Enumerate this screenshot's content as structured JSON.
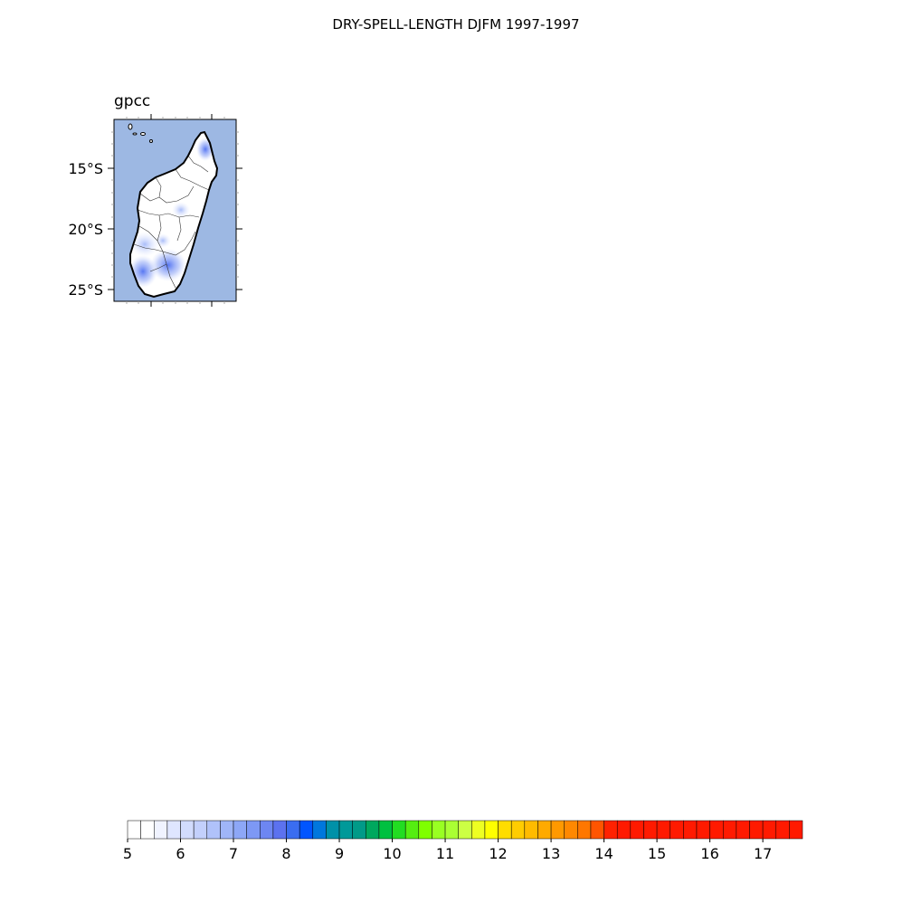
{
  "title": "DRY-SPELL-LENGTH DJFM 1997-1997",
  "panel": {
    "title": "gpcc",
    "y_ticks": [
      "15°S",
      "20°S",
      "25°S"
    ],
    "ocean_color": "#9db8e3",
    "land_color": "#ffffff"
  },
  "colorbar": {
    "min": 5,
    "max": 17.75,
    "step": 0.25,
    "tick_labels": [
      "5",
      "6",
      "7",
      "8",
      "9",
      "10",
      "11",
      "12",
      "13",
      "14",
      "15",
      "16",
      "17"
    ],
    "colors": [
      "#ffffff",
      "#ffffff",
      "#f0f3ff",
      "#dfe6ff",
      "#d2dcfd",
      "#c3d0fc",
      "#b0c2fa",
      "#9fb5f8",
      "#8da7f7",
      "#7d98f5",
      "#6d86f2",
      "#5c72ef",
      "#3a6df0",
      "#0055ff",
      "#0077dd",
      "#0091a8",
      "#009999",
      "#009a88",
      "#00a85e",
      "#00c040",
      "#22dd22",
      "#55ee11",
      "#7fff00",
      "#99ff22",
      "#aaff33",
      "#ccff44",
      "#eeff22",
      "#ffff00",
      "#ffdd00",
      "#ffcc00",
      "#ffbb00",
      "#ffaa00",
      "#ff9900",
      "#ff8800",
      "#ff7700",
      "#ff5500",
      "#ff2200",
      "#ff1a00",
      "#ff1a00",
      "#ff1a00",
      "#ff1a00",
      "#ff1a00",
      "#ff1a00",
      "#ff1a00",
      "#ff1a00",
      "#ff1a00",
      "#ff1a00",
      "#ff1a00",
      "#ff1a00",
      "#ff1a00",
      "#ff1a00"
    ]
  }
}
